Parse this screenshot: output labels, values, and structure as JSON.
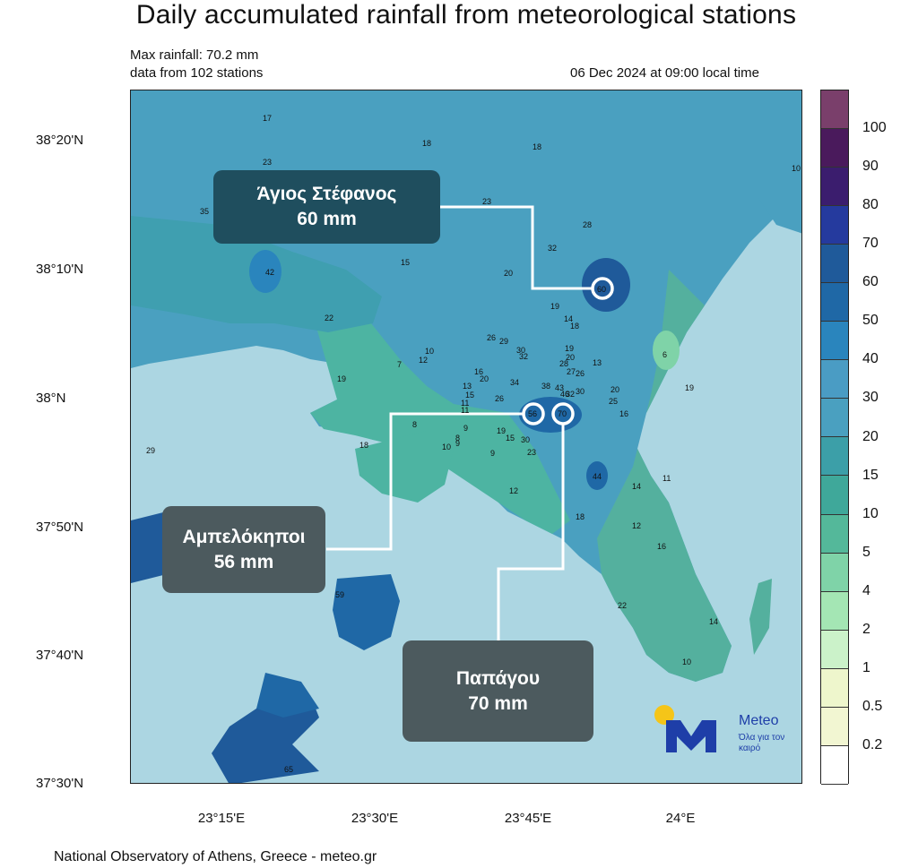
{
  "title": "Daily accumulated rainfall from meteorological stations",
  "header": {
    "max_rainfall": "Max rainfall: 70.2 mm",
    "stations": "data from 102 stations",
    "timestamp": "06 Dec 2024 at 09:00 local time"
  },
  "axes": {
    "lat_ticks": [
      "38°20'N",
      "38°10'N",
      "38°N",
      "37°50'N",
      "37°40'N",
      "37°30'N"
    ],
    "lon_ticks": [
      "23°15'E",
      "23°30'E",
      "23°45'E",
      "24°E"
    ]
  },
  "colorbar": {
    "levels": [
      "100",
      "90",
      "80",
      "70",
      "60",
      "50",
      "40",
      "30",
      "20",
      "15",
      "10",
      "5",
      "4",
      "2",
      "1",
      "0.5",
      "0.2"
    ],
    "colors": [
      "#7a3f6b",
      "#4a1a5c",
      "#3b1d6e",
      "#253a9e",
      "#1f5a9a",
      "#1f68a6",
      "#2a85bd",
      "#4a9cc4",
      "#4aa0c0",
      "#3c9fa8",
      "#3fa89a",
      "#54b89a",
      "#7fd3a8",
      "#a4e6b4",
      "#cbf2c9",
      "#eef6cc",
      "#f2f6d2",
      "#ffffff"
    ]
  },
  "callouts": {
    "agios": {
      "name": "Άγιος Στέφανος",
      "value": "60 mm"
    },
    "ampelokipoi": {
      "name": "Αμπελόκηποι",
      "value": "56 mm"
    },
    "papagou": {
      "name": "Παπάγου",
      "value": "70 mm"
    }
  },
  "station_values": [
    "17",
    "18",
    "18",
    "10",
    "23",
    "13",
    "23",
    "35",
    "28",
    "32",
    "42",
    "15",
    "20",
    "22",
    "19",
    "14",
    "18",
    "26",
    "29",
    "30",
    "32",
    "19",
    "20",
    "10",
    "7",
    "12",
    "28",
    "27",
    "13",
    "26",
    "6",
    "16",
    "20",
    "34",
    "38",
    "43",
    "46",
    "30",
    "32",
    "20",
    "19",
    "13",
    "15",
    "11",
    "26",
    "25",
    "11",
    "19",
    "9",
    "16",
    "8",
    "8",
    "10",
    "9",
    "19",
    "15",
    "30",
    "23",
    "9",
    "18",
    "29",
    "56",
    "70",
    "44",
    "60",
    "14",
    "11",
    "12",
    "16",
    "12",
    "18",
    "22",
    "14",
    "10",
    "59",
    "65",
    "10"
  ],
  "logo": {
    "name": "Meteo",
    "tagline": "Όλα για τον καιρό"
  },
  "footer": "National Observatory of Athens, Greece - meteo.gr"
}
